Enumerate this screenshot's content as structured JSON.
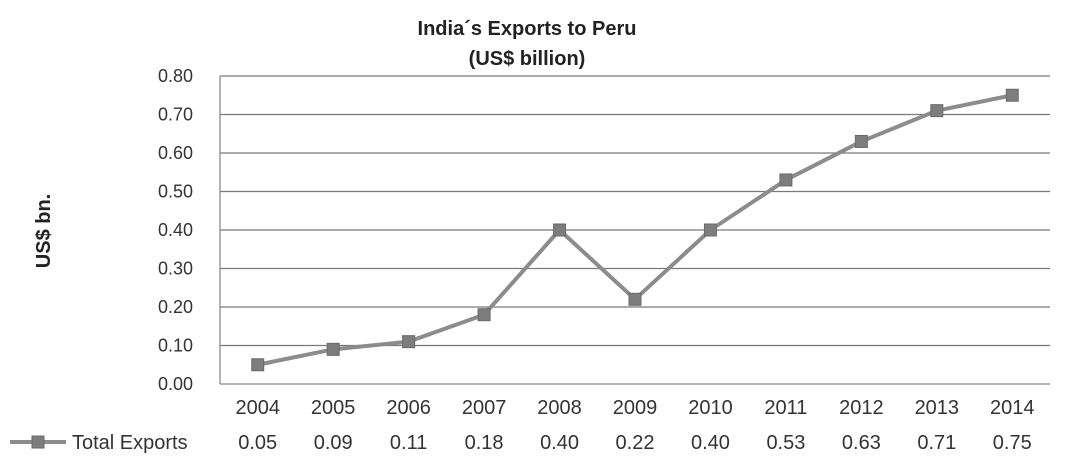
{
  "chart_data": {
    "type": "line",
    "title": "India´s Exports to Peru",
    "subtitle": "(US$ billion)",
    "ylabel": "US$ bn.",
    "xlabel": "",
    "categories": [
      "2004",
      "2005",
      "2006",
      "2007",
      "2008",
      "2009",
      "2010",
      "2011",
      "2012",
      "2013",
      "2014"
    ],
    "series": [
      {
        "name": "Total Exports",
        "values": [
          0.05,
          0.09,
          0.11,
          0.18,
          0.4,
          0.22,
          0.4,
          0.53,
          0.63,
          0.71,
          0.75
        ],
        "value_labels": [
          "0.05",
          "0.09",
          "0.11",
          "0.18",
          "0.40",
          "0.22",
          "0.40",
          "0.53",
          "0.63",
          "0.71",
          "0.75"
        ]
      }
    ],
    "ylim": [
      0,
      0.8
    ],
    "yticks": [
      "0.00",
      "0.10",
      "0.20",
      "0.30",
      "0.40",
      "0.50",
      "0.60",
      "0.70",
      "0.80"
    ],
    "grid": true,
    "legend": "data-table-bottom",
    "line_color": "#8c8c8c"
  }
}
